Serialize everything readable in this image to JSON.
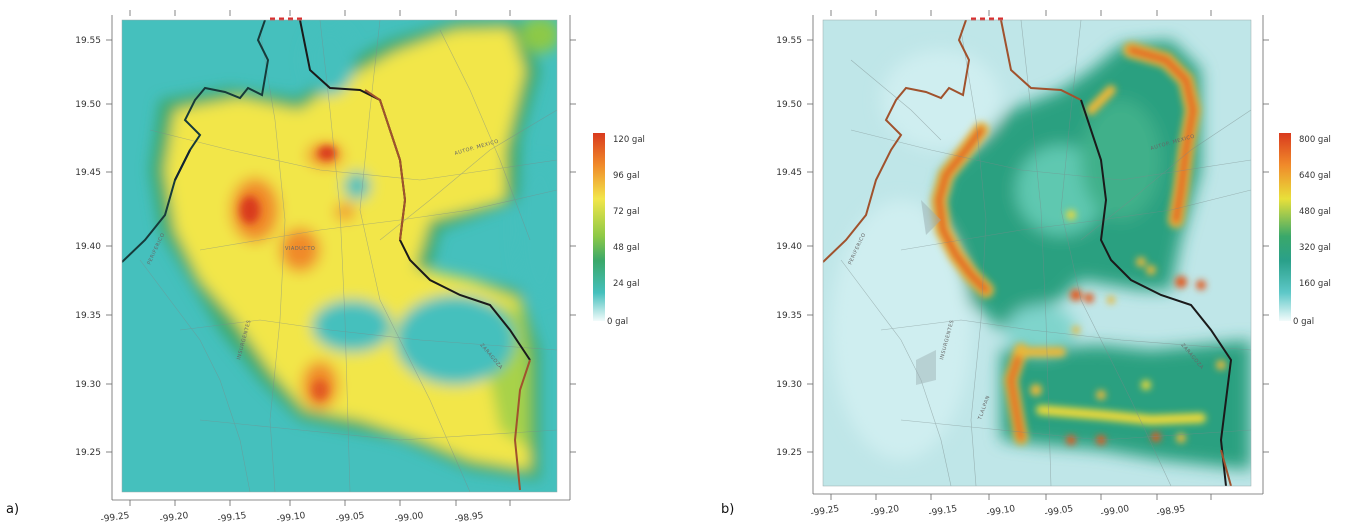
{
  "panels": [
    {
      "letter": "a)",
      "legend_labels": [
        "120 gal",
        "96 gal",
        "72 gal",
        "48 gal",
        "24 gal",
        "0 gal"
      ],
      "ramp": [
        "#d93a1e",
        "#f08a2a",
        "#f2e64a",
        "#8dc947",
        "#3aa86a",
        "#45c0bd",
        "#f2fbfb"
      ]
    },
    {
      "letter": "b)",
      "legend_labels": [
        "800 gal",
        "640 gal",
        "480 gal",
        "320 gal",
        "160 gal",
        "0 gal"
      ],
      "ramp": [
        "#d93a1e",
        "#f08a2a",
        "#e8e03a",
        "#3aa86a",
        "#2aa08a",
        "#5ec8c8",
        "#f2fbfb"
      ]
    }
  ],
  "axes": {
    "x_ticks": [
      "-99.25",
      "-99.20",
      "-99.15",
      "-99.10",
      "-99.05",
      "-99.00",
      "-98.95"
    ],
    "y_ticks": [
      "19.55",
      "19.50",
      "19.45",
      "19.40",
      "19.35",
      "19.30",
      "19.25"
    ]
  },
  "street_labels": [
    "AUTOP. MEXICO",
    "PERIFERICO",
    "INSURGENTES",
    "TLALPAN",
    "ZARAGOZA",
    "VIADUCTO"
  ]
}
